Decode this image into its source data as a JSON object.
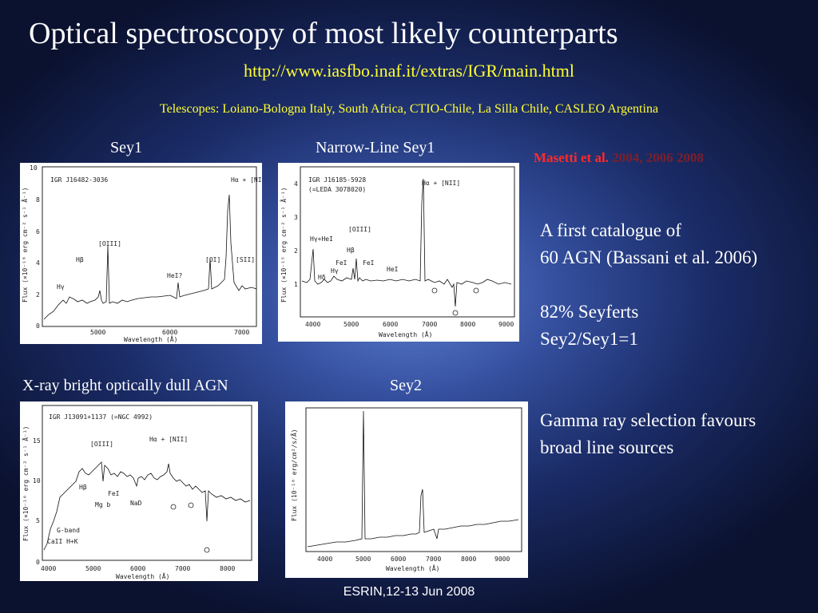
{
  "slide": {
    "title": "Optical spectroscopy of most likely counterparts",
    "url": "http://www.iasfbo.inaf.it/extras/IGR/main.html",
    "telescopes": "Telescopes: Loiano-Bologna Italy, South Africa, CTIO-Chile, La Silla Chile, CASLEO Argentina",
    "reference_prefix": "Masetti et al.",
    "reference_years": "2004, 2006 2008",
    "catalogue_line1": "A first catalogue of",
    "catalogue_line2": "60 AGN (Bassani et al. 2006)",
    "seyferts_line1": "82% Seyferts",
    "seyferts_line2": "Sey2/Sey1=1",
    "gamma_line1": "Gamma ray selection favours",
    "gamma_line2": "broad line sources",
    "footer": "ESRIN,12-13 Jun 2008"
  },
  "panels": {
    "sey1": {
      "caption": "Sey1",
      "source": "IGR J16482-3036",
      "xlabel": "Wavelength (Å)",
      "ylabel": "Flux (×10⁻¹⁶ erg cm⁻² s⁻¹ Å⁻¹)",
      "xticks": [
        "5000",
        "6000",
        "7000"
      ],
      "yticks": [
        "0",
        "2",
        "4",
        "6",
        "8",
        "10"
      ],
      "lines": [
        "Hα + [NII]",
        "[OIII]",
        "Hβ",
        "Hγ",
        "HeI?",
        "[OI]",
        "[SII]"
      ]
    },
    "nlsy1": {
      "caption": "Narrow-Line Sey1",
      "source": "IGR J16185-5928",
      "source2": "(=LEDA 3078020)",
      "xlabel": "Wavelength (Å)",
      "ylabel": "Flux (×10⁻¹⁵ erg cm⁻² s⁻¹ Å⁻¹)",
      "xticks": [
        "4000",
        "5000",
        "6000",
        "7000",
        "8000",
        "9000"
      ],
      "yticks": [
        "1",
        "2",
        "3",
        "4"
      ],
      "lines": [
        "Hα + [NII]",
        "[OIII]",
        "Hγ+HeI",
        "Hβ",
        "FeI",
        "FeI",
        "Hγ",
        "Hδ",
        "HeI"
      ]
    },
    "xbong": {
      "caption": "X-ray bright optically dull AGN",
      "source": "IGR J13091+1137 (=NGC 4992)",
      "xlabel": "Wavelength (Å)",
      "ylabel": "Flux (×10⁻¹⁶ erg cm⁻² s⁻¹ Å⁻¹)",
      "xticks": [
        "4000",
        "5000",
        "6000",
        "7000",
        "8000"
      ],
      "yticks": [
        "0",
        "5",
        "10",
        "15"
      ],
      "lines": [
        "Hα + [NII]",
        "[OIII]",
        "Hβ",
        "FeI",
        "Mg b",
        "NaD",
        "G-band",
        "CaII H+K"
      ]
    },
    "sey2": {
      "caption": "Sey2",
      "xlabel": "Wavelength (Å)",
      "ylabel": "Flux (10⁻¹⁶ erg/cm²/s/Å)",
      "xticks": [
        "4000",
        "5000",
        "6000",
        "7000",
        "8000",
        "9000"
      ]
    }
  }
}
